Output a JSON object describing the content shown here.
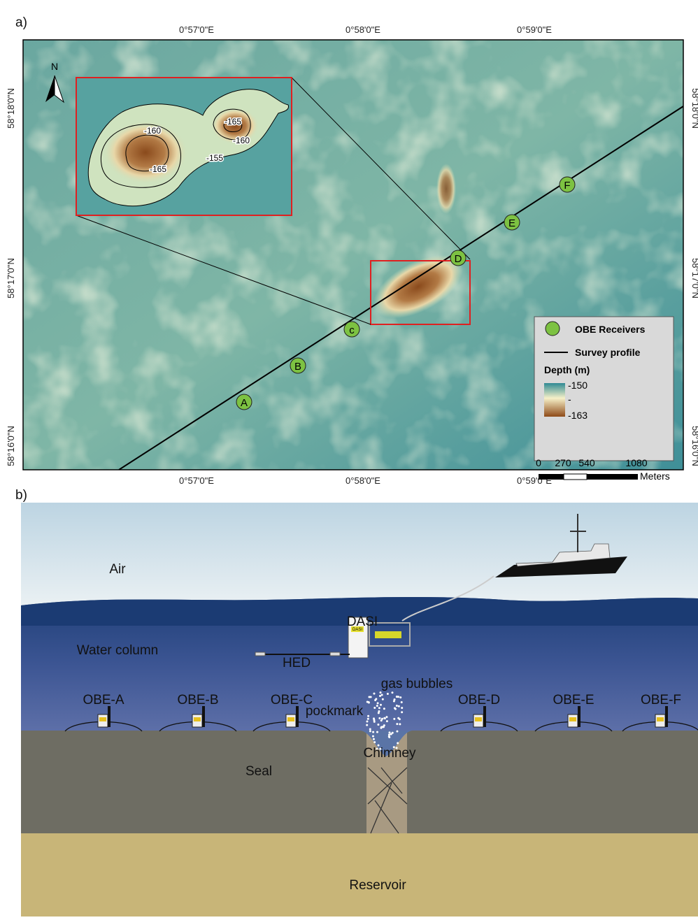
{
  "panel_a": {
    "label": "a)",
    "lon_ticks": [
      "0°57'0\"E",
      "0°58'0\"E",
      "0°59'0\"E"
    ],
    "lat_ticks": [
      "58°18'0\"N",
      "58°17'0\"N",
      "58°16'0\"N"
    ],
    "north": "N",
    "receivers": [
      "A",
      "B",
      "c",
      "D",
      "E",
      "F"
    ],
    "contour_labels": [
      "-160",
      "-165",
      "-165",
      "-160",
      "-155"
    ],
    "legend": {
      "receivers": "OBE Receivers",
      "profile": "Survey profile",
      "depth_title": "Depth (m)",
      "depth_max": "-150",
      "depth_mid": "-",
      "depth_min": "-163"
    },
    "scale": {
      "ticks": [
        "0",
        "270",
        "540",
        "1080"
      ],
      "unit": "Meters"
    }
  },
  "panel_b": {
    "label": "b)",
    "air": "Air",
    "water": "Water column",
    "dasi": "DASI",
    "dasi_box": "DASI",
    "hed": "HED",
    "bubbles": "gas bubbles",
    "pockmark": "pockmark",
    "obe": [
      "OBE-A",
      "OBE-B",
      "OBE-C",
      "OBE-D",
      "OBE-E",
      "OBE-F"
    ],
    "chimney": "Chimney",
    "seal": "Seal",
    "reservoir": "Reservoir"
  }
}
